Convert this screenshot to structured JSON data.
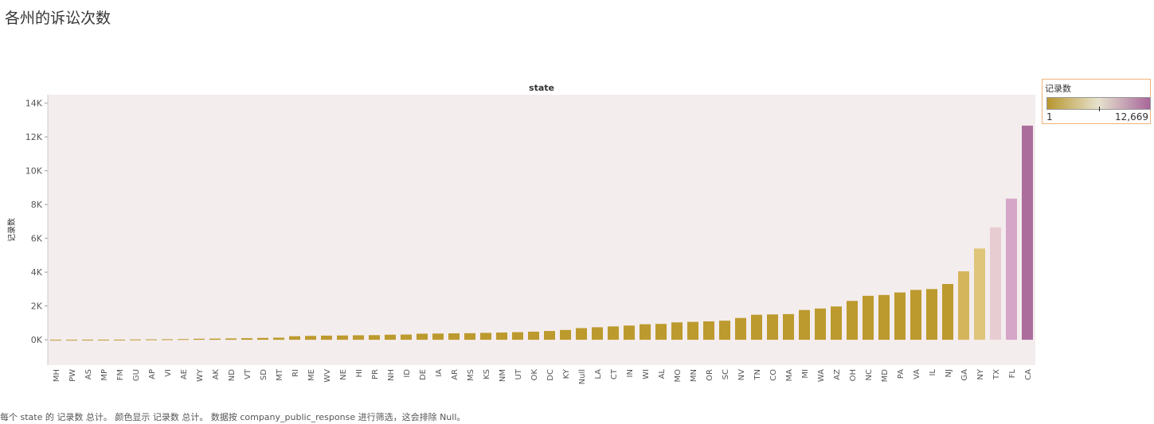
{
  "title": "各州的诉讼次数",
  "footer": "每个 state 的 记录数 总计。 颜色显示 记录数 总计。 数据按 company_public_response 进行筛选，这会排除 Null。",
  "legend": {
    "title": "记录数",
    "min_label": "1",
    "max_label": "12,669",
    "color_low": "#b8962e",
    "color_mid": "#e6e2ce",
    "color_high": "#a8669a"
  },
  "colors": {
    "plot_bg": "#f4eded",
    "bar_default": "#bc9a2e"
  },
  "chart_data": {
    "type": "bar",
    "title": "state",
    "xlabel": "",
    "ylabel": "记录数",
    "ylim": [
      -1500,
      14500
    ],
    "yticks": [
      0,
      2000,
      4000,
      6000,
      8000,
      10000,
      12000,
      14000
    ],
    "ytick_labels": [
      "0K",
      "2K",
      "4K",
      "6K",
      "8K",
      "10K",
      "12K",
      "14K"
    ],
    "grid": false,
    "legend_position": "top-right",
    "categories": [
      "MH",
      "PW",
      "AS",
      "MP",
      "FM",
      "GU",
      "AP",
      "VI",
      "AE",
      "WY",
      "AK",
      "ND",
      "VT",
      "SD",
      "MT",
      "RI",
      "ME",
      "WV",
      "NE",
      "HI",
      "PR",
      "NH",
      "ID",
      "DE",
      "IA",
      "AR",
      "MS",
      "KS",
      "NM",
      "UT",
      "OK",
      "DC",
      "KY",
      "Null",
      "LA",
      "CT",
      "IN",
      "WI",
      "AL",
      "MO",
      "MN",
      "OR",
      "SC",
      "NV",
      "TN",
      "CO",
      "MA",
      "MI",
      "WA",
      "AZ",
      "OH",
      "NC",
      "MD",
      "PA",
      "VA",
      "IL",
      "NJ",
      "GA",
      "NY",
      "TX",
      "FL",
      "CA"
    ],
    "values": [
      1,
      1,
      3,
      5,
      8,
      20,
      25,
      30,
      40,
      60,
      70,
      80,
      95,
      110,
      125,
      210,
      230,
      245,
      255,
      265,
      275,
      300,
      310,
      360,
      370,
      380,
      390,
      410,
      430,
      450,
      480,
      520,
      580,
      690,
      740,
      790,
      840,
      920,
      940,
      1030,
      1060,
      1090,
      1130,
      1290,
      1480,
      1500,
      1520,
      1760,
      1850,
      1970,
      2300,
      2600,
      2650,
      2800,
      2950,
      3000,
      3300,
      4050,
      5400,
      6650,
      8350,
      12669
    ],
    "bar_colors": {
      "GA": "#d5b55c",
      "NY": "#dfc57a",
      "TX": "#e7cdd2",
      "FL": "#d5a6c7",
      "CA": "#ab6e9c"
    }
  }
}
